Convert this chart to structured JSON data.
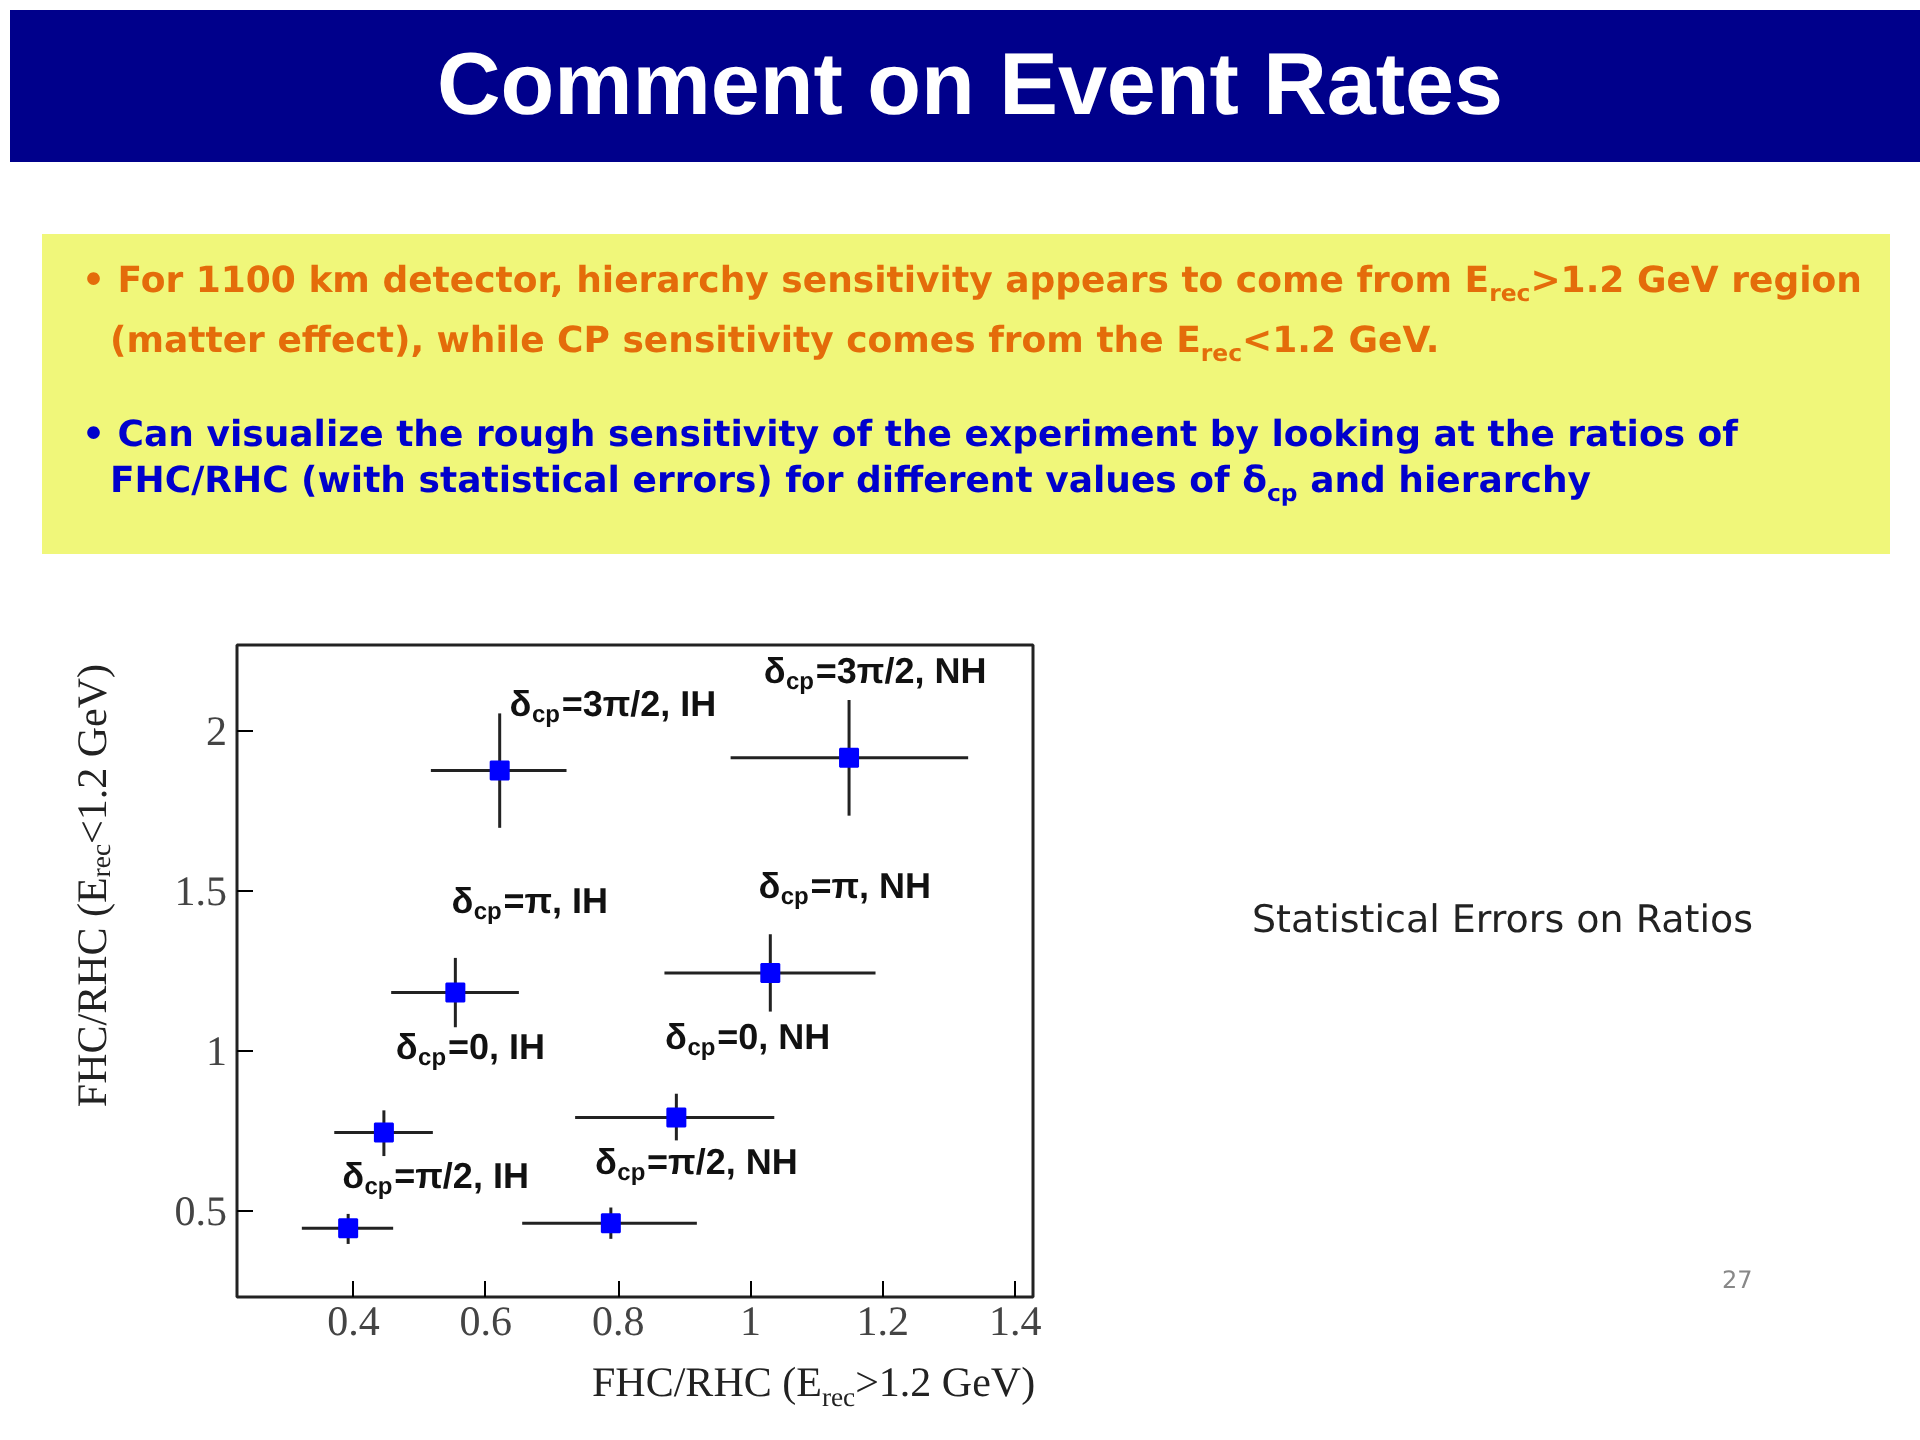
{
  "chart_data": {
    "type": "scatter",
    "title": "Comment on Event Rates",
    "xlabel": "FHC/RHC (E$_{rec}$>1.2 GeV)",
    "ylabel": "FHC/RHC (E$_{rec}$<1.2 GeV)",
    "x": [
      0.621,
      1.149,
      0.554,
      1.03,
      0.446,
      0.888,
      0.392,
      0.789
    ],
    "values": [
      1.877,
      1.917,
      1.183,
      1.244,
      0.745,
      0.792,
      0.445,
      0.461
    ],
    "errors": [
      [
        1.698,
        2.056
      ],
      [
        1.736,
        2.098
      ],
      [
        1.074,
        1.291
      ],
      [
        1.123,
        1.365
      ],
      [
        0.671,
        0.814
      ],
      [
        0.72,
        0.866
      ],
      [
        0.396,
        0.49
      ],
      [
        0.412,
        0.51
      ]
    ],
    "xerrors": [
      [
        0.517,
        0.722
      ],
      [
        0.97,
        1.329
      ],
      [
        0.457,
        0.65
      ],
      [
        0.87,
        1.189
      ],
      [
        0.371,
        0.52
      ],
      [
        0.735,
        1.036
      ],
      [
        0.322,
        0.46
      ],
      [
        0.655,
        0.919
      ]
    ],
    "color": "#0000ff",
    "marker": "square",
    "xlim": [
      0.224,
      1.427
    ],
    "ylim": [
      0.23,
      2.27
    ],
    "xticks": [
      0.4,
      0.6,
      0.8,
      1,
      1.2,
      1.4
    ],
    "yticks": [
      {
        "value": 0.5,
        "label": "0.5"
      },
      {
        "value": 1,
        "label": "1"
      },
      {
        "value": 1.5,
        "label": "1.5"
      },
      {
        "value": 2,
        "label": "2"
      }
    ],
    "grid": false,
    "annotations": [
      "• For 1100 km detector, hierarchy sensitivity appears to come from E$_{rec}$>1.2 GeV region (matter effect), while CP sensitivity comes from the E$_{rec}$<1.2 GeV.",
      "• Can visualize the rough sensitivity of the experiment by looking at the ratios of FHC/RHC (with statistical errors) for different values of δ$_{cp}$ and hierarchy",
      "δ$_{cp}$=3π/2, IH",
      "δ$_{cp}$=3π/2, NH",
      "δ$_{cp}$=π, IH",
      "δ$_{cp}$=π, NH",
      "δ$_{cp}$=0, IH",
      "δ$_{cp}$=0, NH",
      "δ$_{cp}$=π/2, IH",
      "δ$_{cp}$=π/2, NH",
      "Statistical Errors on Ratios",
      "27"
    ]
  }
}
